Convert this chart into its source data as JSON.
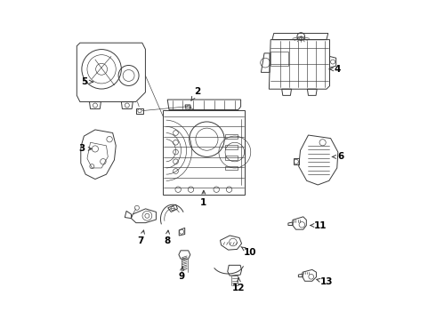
{
  "background_color": "#ffffff",
  "line_color": "#3a3a3a",
  "text_color": "#000000",
  "fig_width": 4.9,
  "fig_height": 3.6,
  "dpi": 100,
  "label_fontsize": 7.5,
  "label_data": [
    [
      1,
      0.455,
      0.365,
      0.455,
      0.415
    ],
    [
      2,
      0.435,
      0.715,
      0.415,
      0.685
    ],
    [
      3,
      0.072,
      0.535,
      0.115,
      0.535
    ],
    [
      4,
      0.875,
      0.785,
      0.84,
      0.785
    ],
    [
      5,
      0.082,
      0.745,
      0.118,
      0.745
    ],
    [
      6,
      0.885,
      0.51,
      0.848,
      0.51
    ],
    [
      7,
      0.258,
      0.245,
      0.27,
      0.29
    ],
    [
      8,
      0.34,
      0.245,
      0.345,
      0.29
    ],
    [
      9,
      0.385,
      0.135,
      0.39,
      0.175
    ],
    [
      10,
      0.6,
      0.21,
      0.572,
      0.228
    ],
    [
      11,
      0.82,
      0.295,
      0.787,
      0.295
    ],
    [
      12,
      0.565,
      0.098,
      0.565,
      0.14
    ],
    [
      13,
      0.84,
      0.118,
      0.806,
      0.126
    ]
  ]
}
